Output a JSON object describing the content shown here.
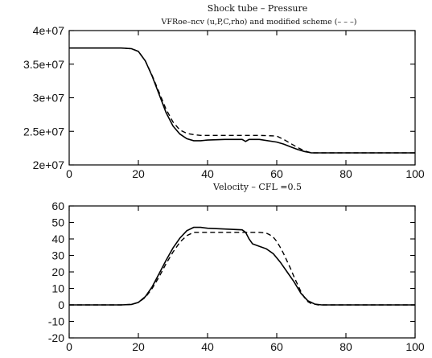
{
  "chart_data": [
    {
      "type": "line",
      "title": "Shock tube – Pressure",
      "subtitle": "VFRoe–ncv (u,P,C,rho) and modified scheme (– – –)",
      "xlabel": "",
      "ylabel": "",
      "xlim": [
        0,
        100
      ],
      "ylim": [
        20000000,
        40000000
      ],
      "xticks": [
        0,
        20,
        40,
        60,
        80,
        100
      ],
      "xtick_labels": [
        "0",
        "20",
        "40",
        "60",
        "80",
        "100"
      ],
      "yticks": [
        20000000,
        25000000,
        30000000,
        35000000,
        40000000
      ],
      "ytick_labels": [
        "2e+07",
        "2.5e+07",
        "3e+07",
        "3.5e+07",
        "4e+07"
      ],
      "series": [
        {
          "style": "solid",
          "x": [
            0,
            15,
            18,
            20,
            22,
            24,
            26,
            28,
            30,
            32,
            34,
            36,
            38,
            40,
            45,
            50,
            51,
            52,
            55,
            60,
            62,
            64,
            66,
            68,
            70,
            100
          ],
          "y": [
            37400000,
            37400000,
            37300000,
            36900000,
            35500000,
            33200000,
            30500000,
            27800000,
            25800000,
            24600000,
            23900000,
            23600000,
            23600000,
            23700000,
            23800000,
            23800000,
            23500000,
            23800000,
            23800000,
            23400000,
            23100000,
            22700000,
            22300000,
            22000000,
            21800000,
            21800000
          ]
        },
        {
          "style": "dashed",
          "x": [
            0,
            15,
            18,
            20,
            22,
            24,
            26,
            28,
            30,
            32,
            34,
            36,
            38,
            40,
            45,
            50,
            55,
            60,
            62,
            64,
            66,
            68,
            70,
            100
          ],
          "y": [
            37400000,
            37400000,
            37300000,
            36900000,
            35500000,
            33300000,
            30800000,
            28300000,
            26400000,
            25200000,
            24700000,
            24500000,
            24400000,
            24400000,
            24400000,
            24400000,
            24400000,
            24300000,
            23800000,
            23200000,
            22600000,
            22100000,
            21800000,
            21800000
          ]
        }
      ]
    },
    {
      "type": "line",
      "title": "Velocity – CFL =0.5",
      "xlabel": "",
      "ylabel": "",
      "xlim": [
        0,
        100
      ],
      "ylim": [
        -20,
        60
      ],
      "xticks": [
        0,
        20,
        40,
        60,
        80,
        100
      ],
      "xtick_labels": [
        "0",
        "20",
        "40",
        "60",
        "80",
        "100"
      ],
      "yticks": [
        -20,
        -10,
        0,
        10,
        20,
        30,
        40,
        50,
        60
      ],
      "ytick_labels": [
        "-20",
        "-10",
        "0",
        "10",
        "20",
        "30",
        "40",
        "50",
        "60"
      ],
      "series": [
        {
          "style": "solid",
          "x": [
            0,
            15,
            18,
            20,
            22,
            24,
            26,
            28,
            30,
            32,
            34,
            36,
            38,
            40,
            45,
            50,
            51,
            52,
            53,
            55,
            57,
            59,
            61,
            63,
            65,
            67,
            69,
            71,
            73,
            100
          ],
          "y": [
            0,
            0,
            0.3,
            1.5,
            5,
            11,
            19,
            27,
            34.5,
            40.5,
            45,
            47,
            47,
            46.5,
            46,
            45.5,
            44,
            40,
            37,
            35.5,
            34,
            31,
            26,
            20,
            14,
            7,
            2.5,
            0.5,
            0,
            0
          ]
        },
        {
          "style": "dashed",
          "x": [
            0,
            15,
            18,
            20,
            22,
            24,
            26,
            28,
            30,
            32,
            34,
            36,
            38,
            40,
            45,
            50,
            55,
            57,
            58,
            59,
            60,
            61,
            62,
            63,
            64,
            65,
            66,
            67,
            68,
            69,
            70,
            72,
            100
          ],
          "y": [
            0,
            0,
            0.3,
            1.5,
            4.5,
            10,
            17,
            25,
            32,
            38,
            42,
            44,
            44,
            44,
            44,
            44,
            44,
            43.5,
            42.5,
            41,
            38.5,
            35,
            31,
            26.5,
            22,
            17,
            12.5,
            8,
            4.5,
            2,
            0.8,
            0,
            0
          ]
        }
      ]
    }
  ]
}
